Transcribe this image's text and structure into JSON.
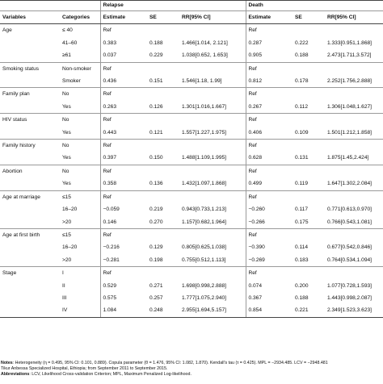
{
  "header": {
    "relapse": "Relapse",
    "death": "Death",
    "columns": [
      "Variables",
      "Categories",
      "Estimate",
      "SE",
      "RR[95% CI]",
      "Estimate",
      "SE",
      "RR[95% CI]"
    ]
  },
  "groups": [
    {
      "variable": "Age",
      "rows": [
        [
          "≤ 40",
          "Ref",
          "",
          "",
          "Ref",
          "",
          ""
        ],
        [
          "41–60",
          "0.383",
          "0.188",
          "1.466[1.014, 2.121]",
          "0.287",
          "0.222",
          "1.333[0.951,1.868]"
        ],
        [
          "≥61",
          "0.037",
          "0.229",
          "1.038[0.652, 1.653]",
          "0.905",
          "0.188",
          "2.473[1.711,3.572]"
        ]
      ]
    },
    {
      "variable": "Smoking status",
      "rows": [
        [
          "Non-smoker",
          "Ref",
          "",
          "",
          "Ref",
          "",
          ""
        ],
        [
          "Smoker",
          "0.436",
          "0.151",
          "1.546[1.18, 1.99]",
          "0.812",
          "0.178",
          "2.252[1.756,2.888]"
        ]
      ]
    },
    {
      "variable": "Family plan",
      "rows": [
        [
          "No",
          "Ref",
          "",
          "",
          "Ref",
          "",
          ""
        ],
        [
          "Yes",
          "0.263",
          "0.126",
          "1.301[1.016,1.667]",
          "0.267",
          "0.112",
          "1.306[1.048,1.627]"
        ]
      ]
    },
    {
      "variable": "HIV status",
      "rows": [
        [
          "No",
          "Ref",
          "",
          "",
          "Ref",
          "",
          ""
        ],
        [
          "Yes",
          "0.443",
          "0.121",
          "1.557[1.227,1.975]",
          "0.406",
          "0.109",
          "1.501[1.212,1.858]"
        ]
      ]
    },
    {
      "variable": "Family history",
      "rows": [
        [
          "No",
          "Ref",
          "",
          "",
          "Ref",
          "",
          ""
        ],
        [
          "Yes",
          "0.397",
          "0.150",
          "1.488[1.109,1.995]",
          "0.628",
          "0.131",
          "1.875[1.45,2.424]"
        ]
      ]
    },
    {
      "variable": "Abortion",
      "rows": [
        [
          "No",
          "Ref",
          "",
          "",
          "Ref",
          "",
          ""
        ],
        [
          "Yes",
          "0.358",
          "0.136",
          "1.432[1.097,1.868]",
          "0.499",
          "0.119",
          "1.647[1.302,2.084]"
        ]
      ]
    },
    {
      "variable": "Age at marriage",
      "rows": [
        [
          "≤15",
          "Ref",
          "",
          "",
          "Ref",
          "",
          ""
        ],
        [
          "16–20",
          "−0.059",
          "0.219",
          "0.943[0.733,1.213]",
          "−0.260",
          "0.117",
          "0.771[0.613,0.970]"
        ],
        [
          ">20",
          "0.146",
          "0.270",
          "1.157[0.682,1.964]",
          "−0.266",
          "0.175",
          "0.766[0.543,1.081]"
        ]
      ]
    },
    {
      "variable": "Age at first birth",
      "rows": [
        [
          "≤15",
          "Ref",
          "",
          "",
          "Ref",
          "",
          ""
        ],
        [
          "16–20",
          "−0.216",
          "0.129",
          "0.805[0.625,1.038]",
          "−0.390",
          "0.114",
          "0.677[0.542,0.846]"
        ],
        [
          ">20",
          "−0.281",
          "0.198",
          "0.755[0.512,1.113]",
          "−0.269",
          "0.183",
          "0.764[0.534,1.094]"
        ]
      ]
    },
    {
      "variable": "Stage",
      "rows": [
        [
          "I",
          "Ref",
          "",
          "",
          "Ref",
          "",
          ""
        ],
        [
          "II",
          "0.529",
          "0.271",
          "1.698[0.998,2.888]",
          "0.074",
          "0.200",
          "1.077[0.728,1.593]"
        ],
        [
          "III",
          "0.575",
          "0.257",
          "1.777[1.075,2.940]",
          "0.367",
          "0.188",
          "1.443[0.998,2.087]"
        ],
        [
          "IV",
          "1.084",
          "0.248",
          "2.955[1.694,5.157]",
          "0.854",
          "0.221",
          "2.349[1.523,3.623]"
        ]
      ]
    }
  ],
  "notes": {
    "notes_label": "Notes",
    "notes_text": ": Heterogeneity (η = 0.495, 95% CI: 0.101, 0.889). Copula parameter (θ = 1.476, 95% CI: 1.082, 1.870). Kendall's tau (τ = 0.425). MPL = −2934.485. LCV = −2948.481",
    "notes_text2": "Tikur Anbessa Specialized Hospital, Ethiopia; from September 2011 to September 2015.",
    "abbr_label": "Abbreviations",
    "abbr_text": ": LCV, Likelihood Cross-validation Criterion; MPL, Maximum Penalized Log-likelihood."
  }
}
